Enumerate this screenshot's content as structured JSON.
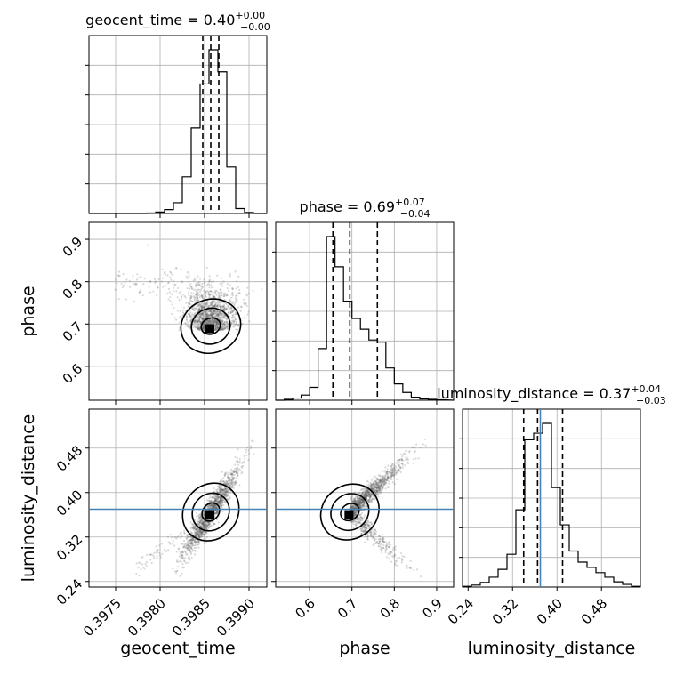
{
  "chart_data": {
    "type": "corner",
    "parameters": [
      {
        "name": "geocent_time",
        "axis_label": "geocent_time",
        "ticks": [
          "0.3975",
          "0.3980",
          "0.3985",
          "0.3990"
        ],
        "range": [
          0.3972,
          0.3992
        ],
        "title": {
          "prefix": "geocent_time = 0.40",
          "plus": "+0.00",
          "minus": "−0.00"
        },
        "quantiles": [
          0.39848,
          0.39857,
          0.39866
        ],
        "truth": null,
        "hist_bins": [
          0.39715,
          0.39725,
          0.39735,
          0.39745,
          0.39755,
          0.39765,
          0.39775,
          0.39785,
          0.39795,
          0.39805,
          0.39815,
          0.39825,
          0.39835,
          0.39845,
          0.39855,
          0.39865,
          0.39875,
          0.39885,
          0.39895,
          0.39905,
          0.39915
        ],
        "hist_counts": [
          0,
          0,
          0,
          0,
          0,
          0,
          0,
          1,
          3,
          8,
          22,
          75,
          175,
          265,
          335,
          290,
          95,
          10,
          2,
          0
        ]
      },
      {
        "name": "phase",
        "axis_label": "phase",
        "ticks": [
          "0.6",
          "0.7",
          "0.8",
          "0.9"
        ],
        "range": [
          0.52,
          0.94
        ],
        "title": {
          "prefix": "phase = 0.69",
          "plus": "+0.07",
          "minus": "−0.04"
        },
        "quantiles": [
          0.655,
          0.695,
          0.76
        ],
        "truth": null,
        "hist_bins": [
          0.52,
          0.54,
          0.56,
          0.58,
          0.6,
          0.62,
          0.64,
          0.66,
          0.68,
          0.7,
          0.72,
          0.74,
          0.76,
          0.78,
          0.8,
          0.82,
          0.84,
          0.86,
          0.88,
          0.9,
          0.92
        ],
        "hist_counts": [
          0,
          2,
          5,
          12,
          30,
          120,
          380,
          310,
          230,
          190,
          165,
          140,
          135,
          75,
          38,
          18,
          7,
          3,
          2,
          1
        ]
      },
      {
        "name": "luminosity_distance",
        "axis_label": "luminosity_distance",
        "ticks": [
          "0.24",
          "0.32",
          "0.40",
          "0.48"
        ],
        "range": [
          0.23,
          0.55
        ],
        "title": {
          "prefix": "luminosity_distance = 0.37",
          "plus": "+0.04",
          "minus": "−0.03"
        },
        "quantiles": [
          0.34,
          0.365,
          0.41
        ],
        "truth": 0.37,
        "hist_bins": [
          0.23,
          0.246,
          0.262,
          0.278,
          0.294,
          0.31,
          0.326,
          0.342,
          0.358,
          0.374,
          0.39,
          0.406,
          0.422,
          0.438,
          0.454,
          0.47,
          0.486,
          0.502,
          0.518,
          0.534,
          0.55
        ],
        "hist_counts": [
          1,
          3,
          7,
          15,
          27,
          50,
          118,
          225,
          235,
          250,
          152,
          95,
          55,
          38,
          30,
          22,
          15,
          8,
          4,
          1
        ]
      }
    ],
    "contour_levels": 3
  }
}
